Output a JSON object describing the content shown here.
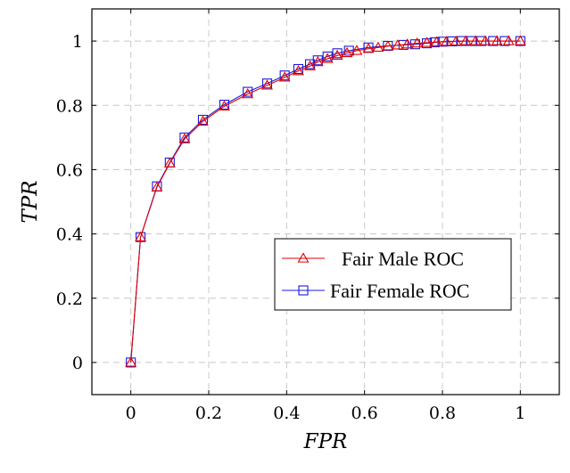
{
  "chart_data": {
    "type": "line",
    "xlabel": "FPR",
    "ylabel": "TPR",
    "xlim": [
      -0.1,
      1.1
    ],
    "ylim": [
      -0.1,
      1.1
    ],
    "xticks": [
      0,
      0.2,
      0.4,
      0.6,
      0.8,
      1
    ],
    "yticks": [
      0,
      0.2,
      0.4,
      0.6,
      0.8,
      1
    ],
    "grid": true,
    "legend_position": "center-right",
    "series": [
      {
        "name": "Fair Male ROC",
        "color": "#e00000",
        "marker": "triangle",
        "x": [
          0,
          0.025,
          0.067,
          0.1,
          0.138,
          0.185,
          0.24,
          0.3,
          0.35,
          0.395,
          0.43,
          0.46,
          0.48,
          0.505,
          0.53,
          0.555,
          0.58,
          0.61,
          0.635,
          0.66,
          0.685,
          0.71,
          0.735,
          0.76,
          0.785,
          0.81,
          0.835,
          0.86,
          0.885,
          0.91,
          0.94,
          0.97,
          1.0
        ],
        "y": [
          0,
          0.39,
          0.545,
          0.62,
          0.695,
          0.75,
          0.797,
          0.835,
          0.862,
          0.887,
          0.907,
          0.922,
          0.935,
          0.945,
          0.955,
          0.963,
          0.97,
          0.976,
          0.98,
          0.984,
          0.987,
          0.99,
          0.993,
          0.995,
          0.997,
          0.998,
          0.999,
          1.0,
          1.0,
          1.0,
          1.0,
          1.0,
          1.0
        ]
      },
      {
        "name": "Fair Female ROC",
        "color": "#1a1adc",
        "marker": "square",
        "x": [
          0,
          0.025,
          0.067,
          0.1,
          0.138,
          0.185,
          0.24,
          0.3,
          0.35,
          0.395,
          0.43,
          0.46,
          0.48,
          0.505,
          0.53,
          0.56,
          0.61,
          0.66,
          0.7,
          0.73,
          0.76,
          0.78,
          0.8,
          0.825,
          0.85,
          0.875,
          0.9,
          0.93,
          0.96,
          1.0
        ],
        "y": [
          0,
          0.39,
          0.548,
          0.622,
          0.7,
          0.755,
          0.802,
          0.842,
          0.868,
          0.893,
          0.913,
          0.928,
          0.94,
          0.952,
          0.962,
          0.97,
          0.98,
          0.985,
          0.988,
          0.99,
          0.993,
          0.996,
          0.998,
          0.999,
          1.0,
          1.0,
          1.0,
          1.0,
          1.0,
          1.0
        ]
      }
    ]
  }
}
